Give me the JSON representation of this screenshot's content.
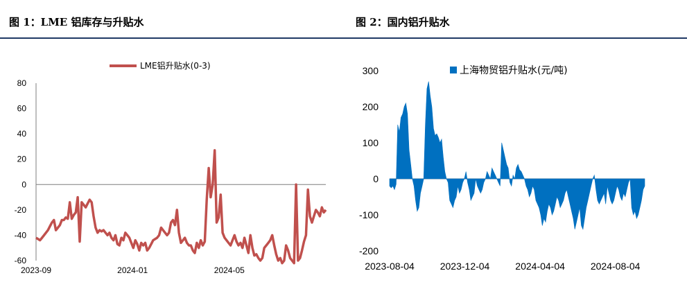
{
  "figures": {
    "left_title": "图 1：LME 铝库存与升贴水",
    "right_title": "图 2：国内铝升贴水"
  },
  "colors": {
    "left_series": "#c0504d",
    "right_series": "#0070c0",
    "rule": "#1f3864"
  },
  "chart_data": [
    {
      "type": "line",
      "series_name": "LME铝升贴水(0-3)",
      "ylim": [
        -60,
        80
      ],
      "y_ticks": [
        80,
        60,
        40,
        20,
        0,
        -20,
        -40,
        -60
      ],
      "x_ticks": [
        "2023-09",
        "2024-01",
        "2024-05"
      ],
      "x_tick_positions": [
        0,
        0.333,
        0.667
      ],
      "grid": false,
      "legend": "top-center",
      "values": [
        -42,
        -43,
        -44,
        -42,
        -40,
        -38,
        -36,
        -33,
        -30,
        -28,
        -36,
        -34,
        -32,
        -28,
        -28,
        -26,
        -27,
        -14,
        -27,
        -24,
        -22,
        -10,
        -45,
        -14,
        -16,
        -18,
        -15,
        -12,
        -14,
        -25,
        -34,
        -38,
        -36,
        -37,
        -36,
        -38,
        -40,
        -38,
        -42,
        -44,
        -40,
        -47,
        -48,
        -42,
        -44,
        -38,
        -40,
        -42,
        -46,
        -50,
        -44,
        -47,
        -52,
        -46,
        -48,
        -46,
        -52,
        -50,
        -47,
        -44,
        -43,
        -42,
        -40,
        -34,
        -36,
        -38,
        -40,
        -38,
        -30,
        -28,
        -32,
        -20,
        -38,
        -46,
        -44,
        -42,
        -46,
        -48,
        -48,
        -52,
        -54,
        -46,
        -50,
        -44,
        -48,
        -45,
        -12,
        13,
        -10,
        0,
        27,
        -30,
        -26,
        -8,
        -38,
        -42,
        -44,
        -46,
        -48,
        -44,
        -40,
        -45,
        -48,
        -46,
        -50,
        -42,
        -48,
        -54,
        -40,
        -50,
        -56,
        -55,
        -58,
        -60,
        -58,
        -50,
        -48,
        -46,
        -44,
        -40,
        -48,
        -55,
        -60,
        -58,
        -62,
        -60,
        -48,
        -52,
        -58,
        -60,
        -62,
        0,
        -60,
        -58,
        -52,
        -45,
        -40,
        -4,
        -25,
        -30,
        -25,
        -20,
        -22,
        -25,
        -18,
        -22,
        -20
      ]
    },
    {
      "type": "area",
      "series_name": "上海物贸铝升贴水(元/吨)",
      "ylim": [
        -200,
        300
      ],
      "y_ticks": [
        300,
        200,
        100,
        0,
        -100,
        -200
      ],
      "x_ticks": [
        "2023-08-04",
        "2023-12-04",
        "2024-04-04",
        "2024-08-04"
      ],
      "x_tick_positions": [
        0,
        0.295,
        0.59,
        0.885
      ],
      "grid": false,
      "legend": "top-center",
      "values": [
        -20,
        -25,
        -20,
        -30,
        -15,
        150,
        130,
        170,
        180,
        200,
        210,
        180,
        80,
        40,
        0,
        -20,
        -60,
        -90,
        -80,
        -40,
        -20,
        0,
        150,
        250,
        270,
        230,
        200,
        140,
        120,
        125,
        115,
        100,
        110,
        60,
        20,
        0,
        -10,
        -60,
        -70,
        -80,
        -60,
        -50,
        -20,
        -40,
        -30,
        -10,
        0,
        20,
        -10,
        -30,
        -60,
        -50,
        -40,
        0,
        -20,
        -30,
        -40,
        -30,
        -10,
        0,
        20,
        10,
        0,
        30,
        20,
        10,
        0,
        -10,
        -20,
        100,
        80,
        60,
        40,
        30,
        -10,
        -20,
        10,
        0,
        30,
        40,
        25,
        20,
        10,
        0,
        -20,
        -30,
        -50,
        -40,
        -20,
        -30,
        -60,
        -70,
        -80,
        -100,
        -130,
        -110,
        -120,
        -90,
        -70,
        -80,
        -100,
        -90,
        -70,
        -50,
        -60,
        -80,
        -70,
        -60,
        -40,
        -30,
        -50,
        -70,
        -90,
        -110,
        -140,
        -120,
        -100,
        -80,
        -130,
        -140,
        -110,
        -80,
        -60,
        -40,
        -20,
        0,
        10,
        -30,
        -60,
        -70,
        -60,
        -50,
        -40,
        -70,
        -20,
        -40,
        -60,
        -70,
        -60,
        -40,
        -20,
        -30,
        -50,
        -60,
        -40,
        -50,
        -30,
        -10,
        0,
        -80,
        -100,
        -90,
        -110,
        -100,
        -80,
        -60,
        -30,
        -20
      ]
    }
  ]
}
